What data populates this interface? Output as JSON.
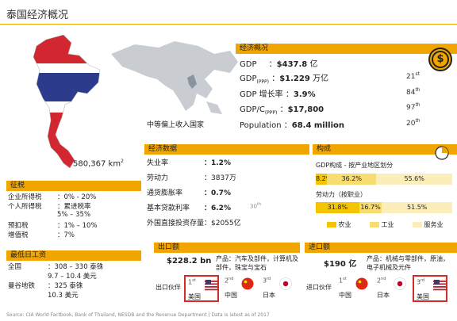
{
  "title": "泰国经济概况",
  "area": "580,367 km",
  "area_sup": "2",
  "income_class": "中等偏上收入国家",
  "economy": {
    "header": "经济概况",
    "gdp_label": "GDP",
    "gdp_value": "$437.8",
    "gdp_unit": "亿",
    "gdpppp_label": "GDP",
    "gdpppp_sub": "(PPP)",
    "gdpppp_value": "$1.229",
    "gdpppp_unit": "万亿",
    "gdpppp_rank": "21",
    "gdpppp_rank_sup": "st",
    "growth_label": "GDP 增长率",
    "growth_value": "3.9%",
    "growth_rank": "84",
    "growth_rank_sup": "th",
    "percap_label": "GDP/C",
    "percap_sub": "(PPP)",
    "percap_value": "$17,800",
    "percap_rank": "97",
    "percap_rank_sup": "th",
    "pop_label": "Population",
    "pop_value": "68.4 million",
    "pop_rank": "20",
    "pop_rank_sup": "th"
  },
  "econ_data": {
    "header": "经济数据",
    "rows": [
      {
        "label": "失业率",
        "value": "1.2%",
        "bold": true
      },
      {
        "label": "劳动力",
        "value": "3837万",
        "bold": false
      },
      {
        "label": "通货膨胀率",
        "value": "0.7%",
        "bold": true
      },
      {
        "label": "基本贷款利率",
        "value": "6.2%",
        "bold": true,
        "note": "30",
        "note_sup": "th"
      },
      {
        "label": "外国直接投资存量",
        "value": "$2055亿",
        "bold": false
      }
    ]
  },
  "composition": {
    "header": "构成",
    "gdp_caption": "GDP构成 - 按产业地区划分",
    "gdp_values": [
      "8.2%",
      "36.2%",
      "55.6%"
    ],
    "gdp_fractions": [
      0.082,
      0.362,
      0.556
    ],
    "labor_caption": "劳动力（按职业）",
    "labor_values": [
      "31.8%",
      "16.7%",
      "51.5%"
    ],
    "labor_fractions": [
      0.318,
      0.167,
      0.515
    ],
    "legend": [
      "农业",
      "工业",
      "服务业"
    ],
    "colors": [
      "#f5c400",
      "#f7dc6f",
      "#fbeebb"
    ]
  },
  "tax": {
    "header": "征税",
    "rows": [
      {
        "label": "企业所得税",
        "value": "：0% - 20%"
      },
      {
        "label": "个人所得税",
        "value": "：累进税率"
      },
      {
        "label": "",
        "value": "5% – 35%"
      },
      {
        "label": "预扣税",
        "value": "：1% – 10%"
      },
      {
        "label": "增值税",
        "value": "：7%"
      }
    ]
  },
  "wage": {
    "header": "最低日工资",
    "rows": [
      {
        "label": "全国",
        "value": "：308 – 330 泰铢"
      },
      {
        "label": "",
        "value": "9.7 – 10.4 美元"
      },
      {
        "label": "曼谷地铁",
        "value": "：325 泰铢"
      },
      {
        "label": "",
        "value": "10.3 美元"
      }
    ]
  },
  "exports": {
    "header": "出口额",
    "value": "$228.2 bn",
    "products": "产品：汽车及部件，计算机及部件，珠宝与宝石",
    "partner_label": "出口伙伴",
    "partners": [
      {
        "rank": "1",
        "sup": "st",
        "name": "美国"
      },
      {
        "rank": "2",
        "sup": "nd",
        "name": "中国"
      },
      {
        "rank": "3",
        "sup": "rd",
        "name": "日本"
      }
    ]
  },
  "imports": {
    "header": "进口额",
    "value": "$190 亿",
    "products": "产品：机械与零部件，原油，电子机械及元件",
    "partner_label": "进口伙伴",
    "partners": [
      {
        "rank": "1",
        "sup": "st",
        "name": "中国"
      },
      {
        "rank": "2",
        "sup": "nd",
        "name": "日本"
      },
      {
        "rank": "3",
        "sup": "rd",
        "name": "美国"
      }
    ]
  },
  "source": "Source: CIA World Factbook, Bank of Thailand, NESDB and the Revenue Department | Data is latest as of 2017"
}
